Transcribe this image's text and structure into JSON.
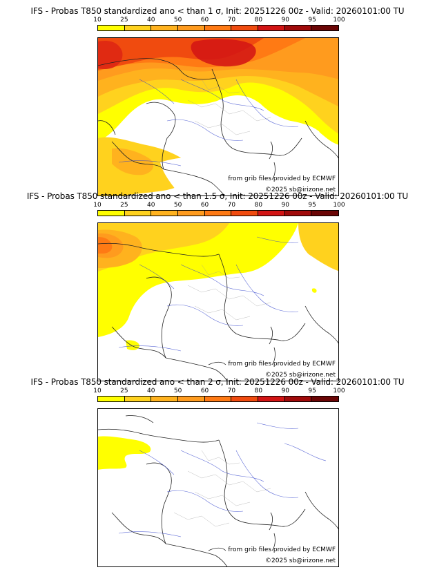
{
  "colorbar": {
    "ticks": [
      "10",
      "25",
      "40",
      "50",
      "60",
      "70",
      "80",
      "90",
      "95",
      "100"
    ],
    "colors": [
      "#ffff00",
      "#ffd21e",
      "#ffb21e",
      "#ff9b1e",
      "#ff7a14",
      "#f04b0f",
      "#d21414",
      "#a00a0a",
      "#6a0505"
    ]
  },
  "panels": [
    {
      "title": "IFS - Probas T850  standardized ano < than 1 σ, Init: 20251226 00z - Valid: 20260101:00 TU",
      "credit_source": "from grib files provided by ECMWF",
      "credit_copy": "©2025 sb@irizone.net"
    },
    {
      "title": "IFS - Probas T850  standardized ano < than 1.5 σ, Init: 20251226 00z - Valid: 20260101:00 TU",
      "credit_source": "from grib files provided by ECMWF",
      "credit_copy": "©2025 sb@irizone.net"
    },
    {
      "title": "IFS - Probas T850  standardized ano < than 2 σ, Init: 20251226 00z - Valid: 20260101:00 TU",
      "credit_source": "from grib files provided by ECMWF",
      "credit_copy": "©2025 sb@irizone.net"
    }
  ]
}
